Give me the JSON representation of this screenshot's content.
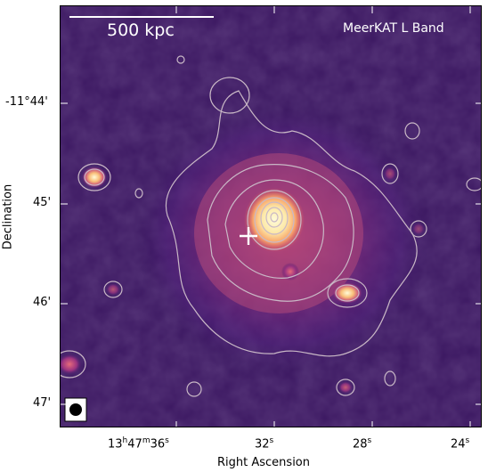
{
  "panel": {
    "band_label": "MeerKAT L Band",
    "scale_bar_label": "500 kpc"
  },
  "axes": {
    "xlabel": "Right Ascension",
    "ylabel": "Declination",
    "x_ticks": {
      "first": {
        "h": "13",
        "m": "47",
        "s": "36"
      },
      "rest": [
        "32",
        "28",
        "24"
      ]
    },
    "y_ticks": [
      "-11°44'",
      "45'",
      "46'",
      "47'"
    ]
  },
  "colors": {
    "background_deep": "#1a0a33",
    "background_mid": "#3a1660",
    "emission_low": "#5a1f7a",
    "emission_mid": "#b0407a",
    "emission_high": "#f07a5a",
    "emission_peak": "#fde9a8",
    "contour": "#c9b8c6",
    "marker": "#ffffff"
  },
  "symbols": {
    "marker": "plus-marker",
    "beam": "beam-ellipse"
  }
}
